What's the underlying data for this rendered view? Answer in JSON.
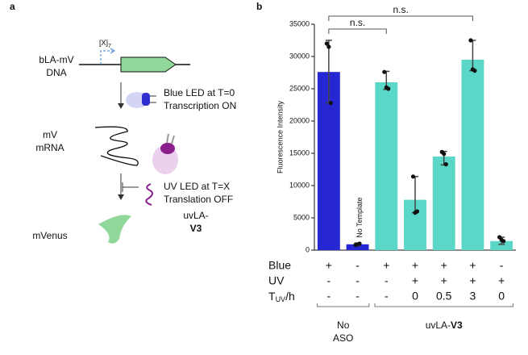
{
  "panel_a": {
    "letter": "a",
    "dna_label": [
      "bLA-mV",
      "DNA"
    ],
    "promoter": {
      "text": "[X]",
      "sub": "7"
    },
    "blue_led": [
      "Blue LED at T=0",
      "Transcription ON"
    ],
    "mrna_label": [
      "mV",
      "mRNA"
    ],
    "uv_led": [
      "UV LED at T=X",
      "Translation OFF"
    ],
    "aso_label": [
      "uvLA-",
      "V3"
    ],
    "protein_label": "mVenus"
  },
  "chart_data": {
    "type": "bar",
    "letter": "b",
    "ylabel": "Fluorescence Intensity",
    "categories": [
      null,
      "No Template",
      null,
      null,
      null,
      null,
      null
    ],
    "values": [
      27600,
      900,
      26000,
      7800,
      14500,
      29500,
      1400
    ],
    "err_low": [
      22800,
      700,
      24900,
      5800,
      13200,
      27800,
      900
    ],
    "err_high": [
      32500,
      1100,
      27700,
      11400,
      15300,
      32500,
      2000
    ],
    "points": [
      [
        32000,
        31500,
        22800
      ],
      [
        800,
        900,
        1000
      ],
      [
        27600,
        25200,
        25000
      ],
      [
        11400,
        5800,
        6000
      ],
      [
        15200,
        14900,
        13300
      ],
      [
        32500,
        28000,
        27800
      ],
      [
        2000,
        1600,
        1400
      ]
    ],
    "colors": [
      "#2626d3",
      "#2626d3",
      "#5ad7c6",
      "#5ad7c6",
      "#5ad7c6",
      "#5ad7c6",
      "#5ad7c6"
    ],
    "ylim": [
      0,
      35000
    ],
    "yticks": [
      0,
      5000,
      10000,
      15000,
      20000,
      25000,
      30000,
      35000
    ],
    "significance": [
      {
        "from": 0,
        "to": 2,
        "label": "n.s."
      },
      {
        "from": 0,
        "to": 5,
        "label": "n.s."
      }
    ],
    "conditions": [
      {
        "label": "Blue",
        "cells": [
          "+",
          "-",
          "+",
          "+",
          "+",
          "+",
          "-"
        ]
      },
      {
        "label": "UV",
        "cells": [
          "-",
          "-",
          "-",
          "+",
          "+",
          "+",
          "+"
        ]
      },
      {
        "label": {
          "main": "T",
          "sub": "UV",
          "suffix": "/h"
        },
        "cells": [
          "-",
          "-",
          "-",
          "0",
          "0.5",
          "3",
          "0"
        ]
      }
    ],
    "groups": [
      {
        "from": 0,
        "to": 1,
        "label": [
          "No",
          "ASO"
        ]
      },
      {
        "from": 2,
        "to": 6,
        "label": {
          "main": "uvLA-",
          "bold": "V3"
        }
      }
    ]
  }
}
